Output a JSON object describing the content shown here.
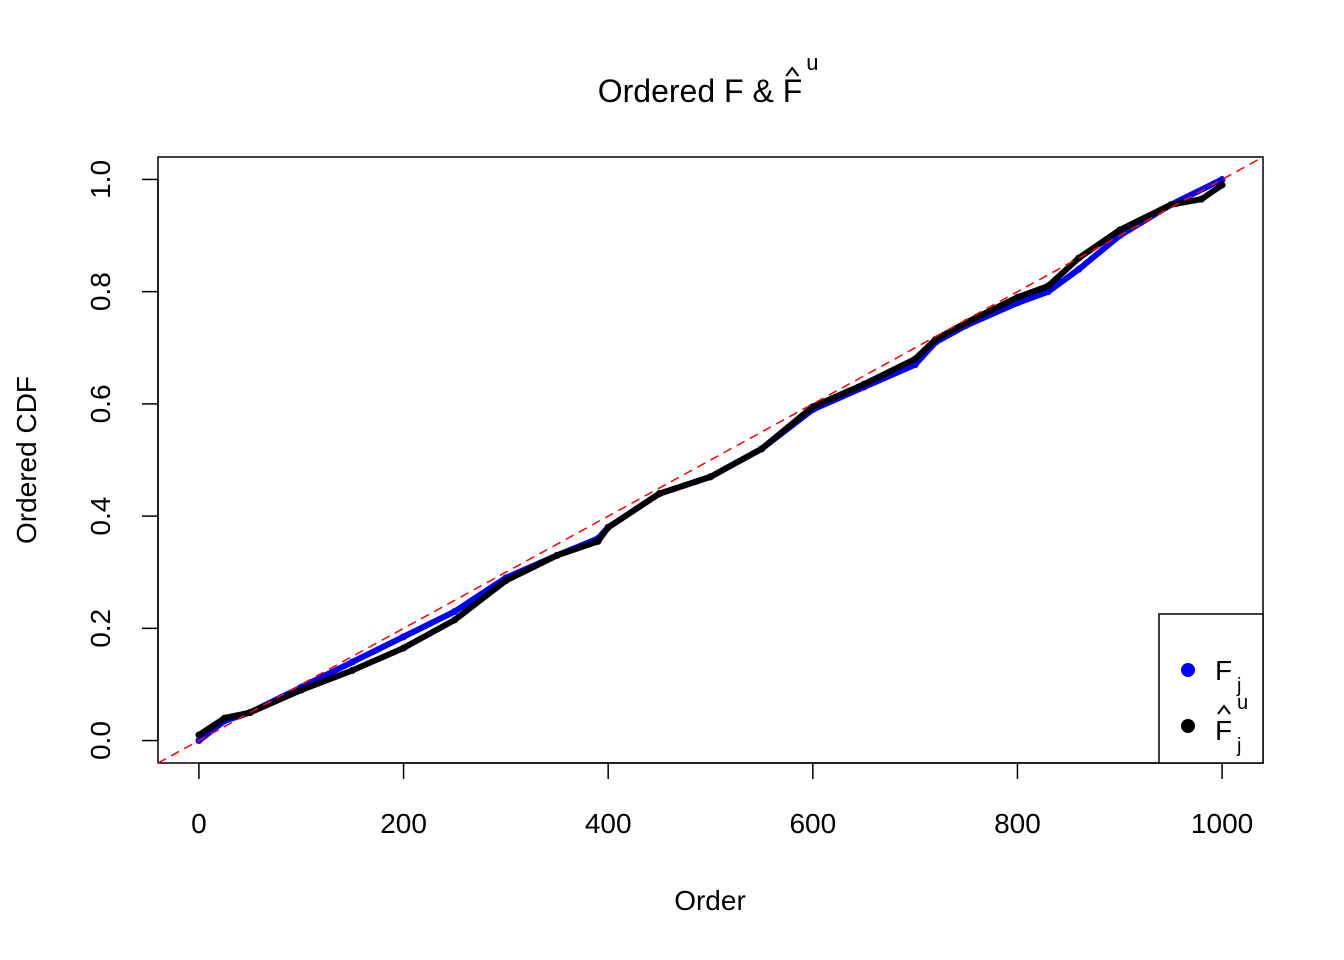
{
  "chart_data": {
    "type": "line",
    "title": "Ordered F & F̂",
    "title_main": "Ordered F & F",
    "title_superscript": "u",
    "xlabel": "Order",
    "ylabel": "Ordered CDF",
    "xlim": [
      -40,
      1040
    ],
    "ylim": [
      -0.04,
      1.04
    ],
    "x_ticks": [
      "0",
      "200",
      "400",
      "600",
      "800",
      "1000"
    ],
    "y_ticks": [
      "0.0",
      "0.2",
      "0.4",
      "0.6",
      "0.8",
      "1.0"
    ],
    "grid": false,
    "legend_placement": "bottom-right",
    "reference_line": {
      "style": "dashed",
      "color": "#ff0000",
      "from": [
        0,
        0
      ],
      "to": [
        1000,
        1
      ]
    },
    "series": [
      {
        "name": "F_j",
        "legend_main": "F",
        "legend_sub": "j",
        "color": "#0000ff",
        "x": [
          0,
          25,
          50,
          100,
          150,
          200,
          250,
          300,
          350,
          390,
          400,
          450,
          500,
          550,
          600,
          650,
          700,
          720,
          750,
          800,
          830,
          860,
          900,
          950,
          1000
        ],
        "y": [
          0.0,
          0.035,
          0.05,
          0.095,
          0.14,
          0.185,
          0.23,
          0.29,
          0.33,
          0.36,
          0.38,
          0.44,
          0.47,
          0.52,
          0.59,
          0.63,
          0.67,
          0.71,
          0.74,
          0.78,
          0.8,
          0.84,
          0.9,
          0.955,
          1.0
        ]
      },
      {
        "name": "F̂_j^u",
        "legend_main": "F",
        "legend_sub": "j",
        "legend_sup": "u",
        "color": "#000000",
        "x": [
          0,
          25,
          50,
          100,
          150,
          200,
          250,
          300,
          350,
          390,
          400,
          450,
          500,
          550,
          600,
          650,
          700,
          720,
          750,
          800,
          830,
          860,
          900,
          950,
          980,
          1000
        ],
        "y": [
          0.01,
          0.04,
          0.05,
          0.09,
          0.125,
          0.165,
          0.215,
          0.285,
          0.33,
          0.355,
          0.38,
          0.44,
          0.47,
          0.52,
          0.595,
          0.635,
          0.68,
          0.715,
          0.745,
          0.79,
          0.81,
          0.86,
          0.91,
          0.955,
          0.965,
          0.99
        ]
      }
    ]
  }
}
